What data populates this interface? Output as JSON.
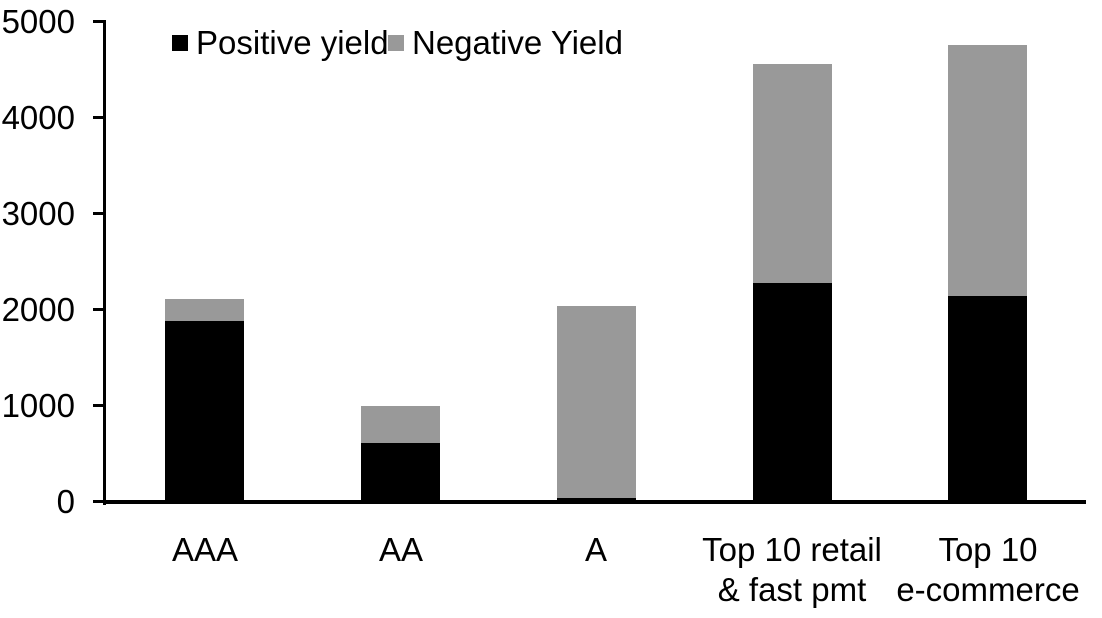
{
  "chart_data": {
    "type": "bar",
    "stacked": true,
    "title": "",
    "xlabel": "",
    "ylabel": "",
    "categories": [
      "AAA",
      "AA",
      "A",
      "Top 10 retail\n& fast pmt",
      "Top 10\ne-commerce"
    ],
    "series": [
      {
        "name": "Positive yield",
        "color": "#000000",
        "values": [
          1890,
          615,
          40,
          2280,
          2145
        ]
      },
      {
        "name": "Negative Yield",
        "color": "#999999",
        "values": [
          230,
          390,
          2000,
          2285,
          2615
        ]
      }
    ],
    "ylim": [
      0,
      5000
    ],
    "yticks": [
      0,
      1000,
      2000,
      3000,
      4000,
      5000
    ],
    "grid": false,
    "legend_position": "top-inside-left",
    "colors": {
      "axis": "#000000",
      "background": "#ffffff",
      "text": "#000000"
    }
  }
}
